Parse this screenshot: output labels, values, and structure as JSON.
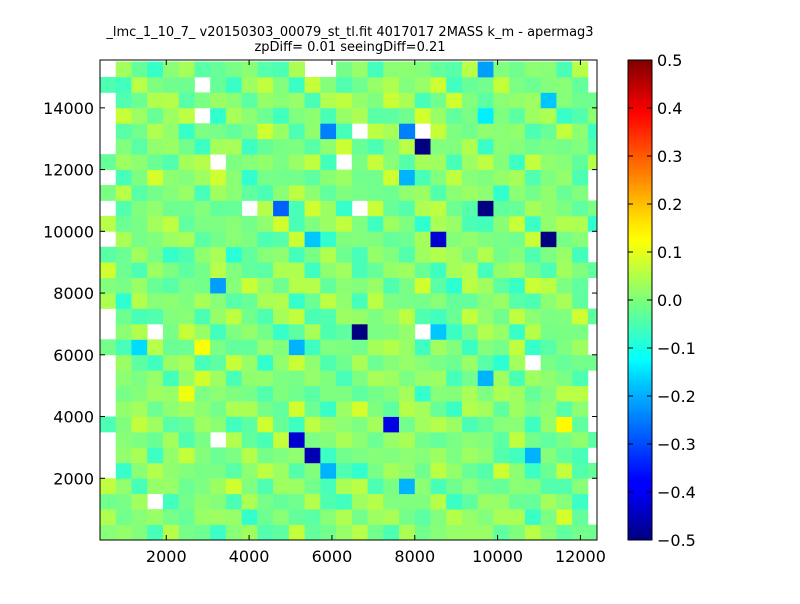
{
  "chart_data": {
    "type": "heatmap",
    "title": "_lmc_1_10_7_ v20150303_00079_st_tl.fit 4017017 2MASS k_m - apermag3",
    "subtitle": "zpDiff= 0.01 seeingDiff=0.21",
    "xlabel": "",
    "ylabel": "",
    "xlim": [
      400,
      12400
    ],
    "ylim": [
      0,
      15550
    ],
    "x_ticks": [
      "2000",
      "4000",
      "6000",
      "8000",
      "10000",
      "12000"
    ],
    "y_ticks": [
      "2000",
      "4000",
      "6000",
      "8000",
      "10000",
      "12000",
      "14000"
    ],
    "x_tick_values": [
      2000,
      4000,
      6000,
      8000,
      10000,
      12000
    ],
    "y_tick_values": [
      2000,
      4000,
      6000,
      8000,
      10000,
      12000,
      14000
    ],
    "grid": false,
    "colorbar": {
      "colormap": "jet",
      "vmin": -0.5,
      "vmax": 0.5,
      "ticks": [
        "0.5",
        "0.4",
        "0.3",
        "0.2",
        "0.1",
        "0.0",
        "−0.1",
        "−0.2",
        "−0.3",
        "−0.4",
        "−0.5"
      ],
      "tick_values": [
        0.5,
        0.4,
        0.3,
        0.2,
        0.1,
        0.0,
        -0.1,
        -0.2,
        -0.3,
        -0.4,
        -0.5
      ]
    },
    "bins": {
      "x_start": 400,
      "x_step": 380,
      "nx": 32,
      "y_start": 0,
      "y_step": 500,
      "ny": 31
    },
    "highlight_cells": [
      {
        "x": 8000,
        "y": 12750,
        "value": -0.5
      },
      {
        "x": 9650,
        "y": 10950,
        "value": -0.5
      },
      {
        "x": 11150,
        "y": 9950,
        "value": -0.5
      },
      {
        "x": 6550,
        "y": 6550,
        "value": -0.5
      },
      {
        "x": 8450,
        "y": 9550,
        "value": -0.42
      },
      {
        "x": 5450,
        "y": 2750,
        "value": -0.45
      },
      {
        "x": 5050,
        "y": 3250,
        "value": -0.42
      },
      {
        "x": 7250,
        "y": 3750,
        "value": -0.4
      },
      {
        "x": 6050,
        "y": 13450,
        "value": -0.25
      },
      {
        "x": 7750,
        "y": 13450,
        "value": -0.25
      },
      {
        "x": 4850,
        "y": 10950,
        "value": -0.28
      },
      {
        "x": 3250,
        "y": 8450,
        "value": -0.22
      },
      {
        "x": 5350,
        "y": 9550,
        "value": -0.18
      },
      {
        "x": 5150,
        "y": 6050,
        "value": -0.2
      },
      {
        "x": 6050,
        "y": 2250,
        "value": -0.2
      },
      {
        "x": 7750,
        "y": 1750,
        "value": -0.2
      },
      {
        "x": 9850,
        "y": 5050,
        "value": -0.2
      },
      {
        "x": 10750,
        "y": 2750,
        "value": -0.2
      },
      {
        "x": 11050,
        "y": 14450,
        "value": -0.18
      },
      {
        "x": 7850,
        "y": 11750,
        "value": -0.2
      },
      {
        "x": 9650,
        "y": 15350,
        "value": -0.22
      },
      {
        "x": 8450,
        "y": 6950,
        "value": -0.18
      },
      {
        "x": 1350,
        "y": 6050,
        "value": -0.16
      },
      {
        "x": 9650,
        "y": 13950,
        "value": -0.14
      },
      {
        "x": 11550,
        "y": 3750,
        "value": 0.13
      },
      {
        "x": 3050,
        "y": 6050,
        "value": 0.12
      },
      {
        "x": 2650,
        "y": 4950,
        "value": 0.11
      }
    ],
    "missing_cells": [
      {
        "x": 3050,
        "y": 13950
      },
      {
        "x": 6350,
        "y": 12450
      },
      {
        "x": 6650,
        "y": 13450
      },
      {
        "x": 8150,
        "y": 13450
      },
      {
        "x": 3250,
        "y": 12150
      },
      {
        "x": 3850,
        "y": 10950
      },
      {
        "x": 6850,
        "y": 10950
      },
      {
        "x": 1650,
        "y": 6950
      },
      {
        "x": 8050,
        "y": 6550
      },
      {
        "x": 10750,
        "y": 5750
      },
      {
        "x": 3250,
        "y": 3250
      },
      {
        "x": 1650,
        "y": 1250
      },
      {
        "x": 5450,
        "y": 15350
      },
      {
        "x": 5850,
        "y": 15350
      },
      {
        "x": 3050,
        "y": 14950
      }
    ]
  }
}
